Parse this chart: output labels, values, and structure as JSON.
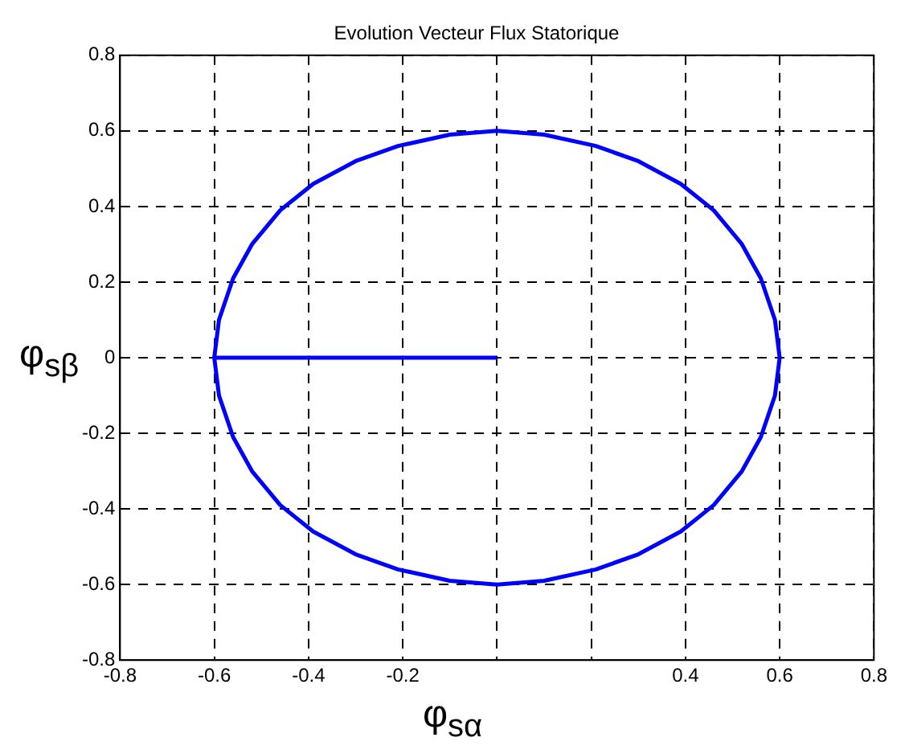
{
  "chart_data": {
    "type": "line",
    "title": "Evolution Vecteur Flux Statorique",
    "xlabel": "φ$_{sα}$",
    "ylabel": "φ$_{sβ}$",
    "xlim": [
      -0.8,
      0.8
    ],
    "xticks": [
      -0.8,
      -0.6,
      -0.4,
      -0.2,
      {
        "value": 0,
        "label": null
      },
      {
        "value": 0.2,
        "label": null
      },
      0.4,
      0.6,
      0.8
    ],
    "ylim": [
      -0.8,
      0.8
    ],
    "yticks": [
      -0.8,
      -0.6,
      -0.4,
      -0.2,
      0,
      0.2,
      0.4,
      0.6,
      0.8
    ],
    "grid": true,
    "legend": false,
    "marker": "none",
    "line_style": "solid",
    "series": [
      {
        "color": "#0000ff",
        "x": [
          0,
          -0.6,
          -0.59,
          -0.56,
          -0.52,
          -0.46,
          -0.39,
          -0.3,
          -0.21,
          -0.1,
          0,
          0.1,
          0.21,
          0.3,
          0.39,
          0.46,
          0.52,
          0.56,
          0.59,
          0.6,
          0.59,
          0.56,
          0.52,
          0.46,
          0.39,
          0.3,
          0.21,
          0.1,
          0,
          -0.1,
          -0.21,
          -0.3,
          -0.39,
          -0.46,
          -0.52,
          -0.56,
          -0.59,
          -0.6
        ],
        "values": [
          0,
          0,
          -0.1,
          -0.21,
          -0.3,
          -0.39,
          -0.46,
          -0.52,
          -0.56,
          -0.59,
          -0.6,
          -0.59,
          -0.56,
          -0.52,
          -0.46,
          -0.39,
          -0.3,
          -0.21,
          -0.1,
          0,
          0.1,
          0.21,
          0.3,
          0.39,
          0.46,
          0.52,
          0.56,
          0.59,
          0.6,
          0.59,
          0.56,
          0.52,
          0.46,
          0.39,
          0.3,
          0.21,
          0.1,
          0
        ]
      }
    ]
  }
}
